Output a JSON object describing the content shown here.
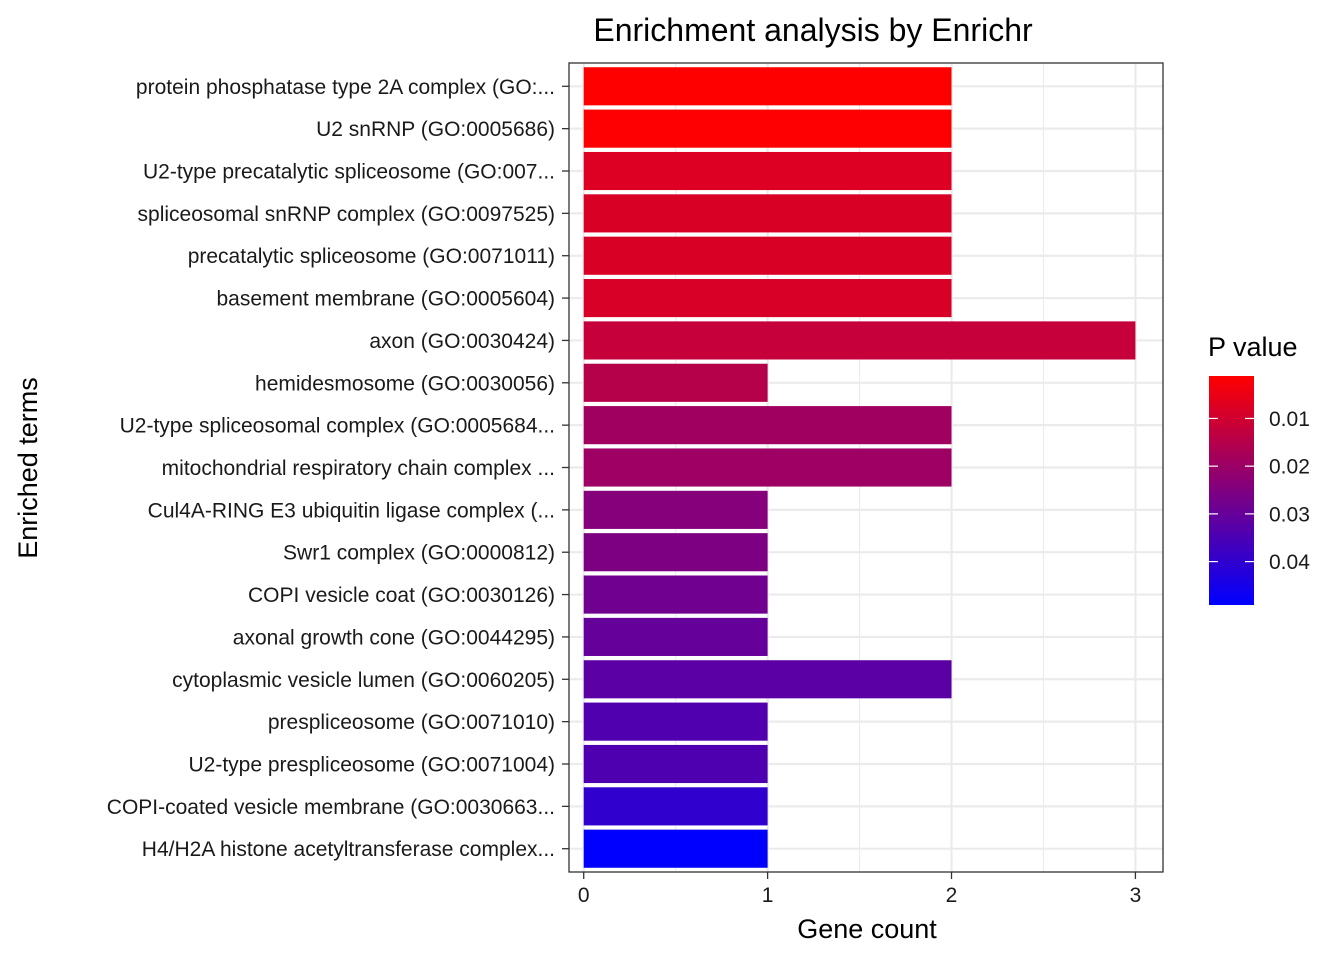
{
  "chart_data": {
    "type": "bar",
    "orientation": "horizontal",
    "title": "Enrichment analysis by Enrichr",
    "xlabel": "Gene count",
    "ylabel": "Enriched terms",
    "xlim": [
      -0.08,
      3.15
    ],
    "x_ticks": [
      0,
      1,
      2,
      3
    ],
    "grid": true,
    "legend": {
      "title": "P value",
      "position": "right",
      "ticks": [
        0.01,
        0.02,
        0.03,
        0.04
      ],
      "range": [
        0.0011,
        0.0491
      ],
      "low_color": "#ff0000",
      "high_color": "#0000ff"
    },
    "categories": [
      "protein phosphatase type 2A complex (GO:...",
      "U2 snRNP (GO:0005686)",
      "U2-type precatalytic spliceosome (GO:007...",
      "spliceosomal snRNP complex (GO:0097525)",
      "precatalytic spliceosome (GO:0071011)",
      "basement membrane (GO:0005604)",
      "axon (GO:0030424)",
      "hemidesmosome (GO:0030056)",
      "U2-type spliceosomal complex (GO:0005684...",
      "mitochondrial respiratory chain complex ...",
      "Cul4A-RING E3 ubiquitin ligase complex (...",
      "Swr1 complex (GO:0000812)",
      "COPI vesicle coat (GO:0030126)",
      "axonal growth cone (GO:0044295)",
      "cytoplasmic vesicle lumen (GO:0060205)",
      "prespliceosome (GO:0071010)",
      "U2-type prespliceosome (GO:0071004)",
      "COPI-coated vesicle membrane (GO:0030663...",
      "H4/H2A histone acetyltransferase complex..."
    ],
    "values": [
      2,
      2,
      2,
      2,
      2,
      2,
      3,
      1,
      2,
      2,
      1,
      1,
      1,
      1,
      2,
      1,
      1,
      1,
      1
    ],
    "p_values": [
      0.0011,
      0.0012,
      0.0075,
      0.0082,
      0.0083,
      0.0084,
      0.012,
      0.015,
      0.019,
      0.0195,
      0.024,
      0.0255,
      0.028,
      0.03,
      0.032,
      0.034,
      0.0345,
      0.04,
      0.0491
    ]
  }
}
